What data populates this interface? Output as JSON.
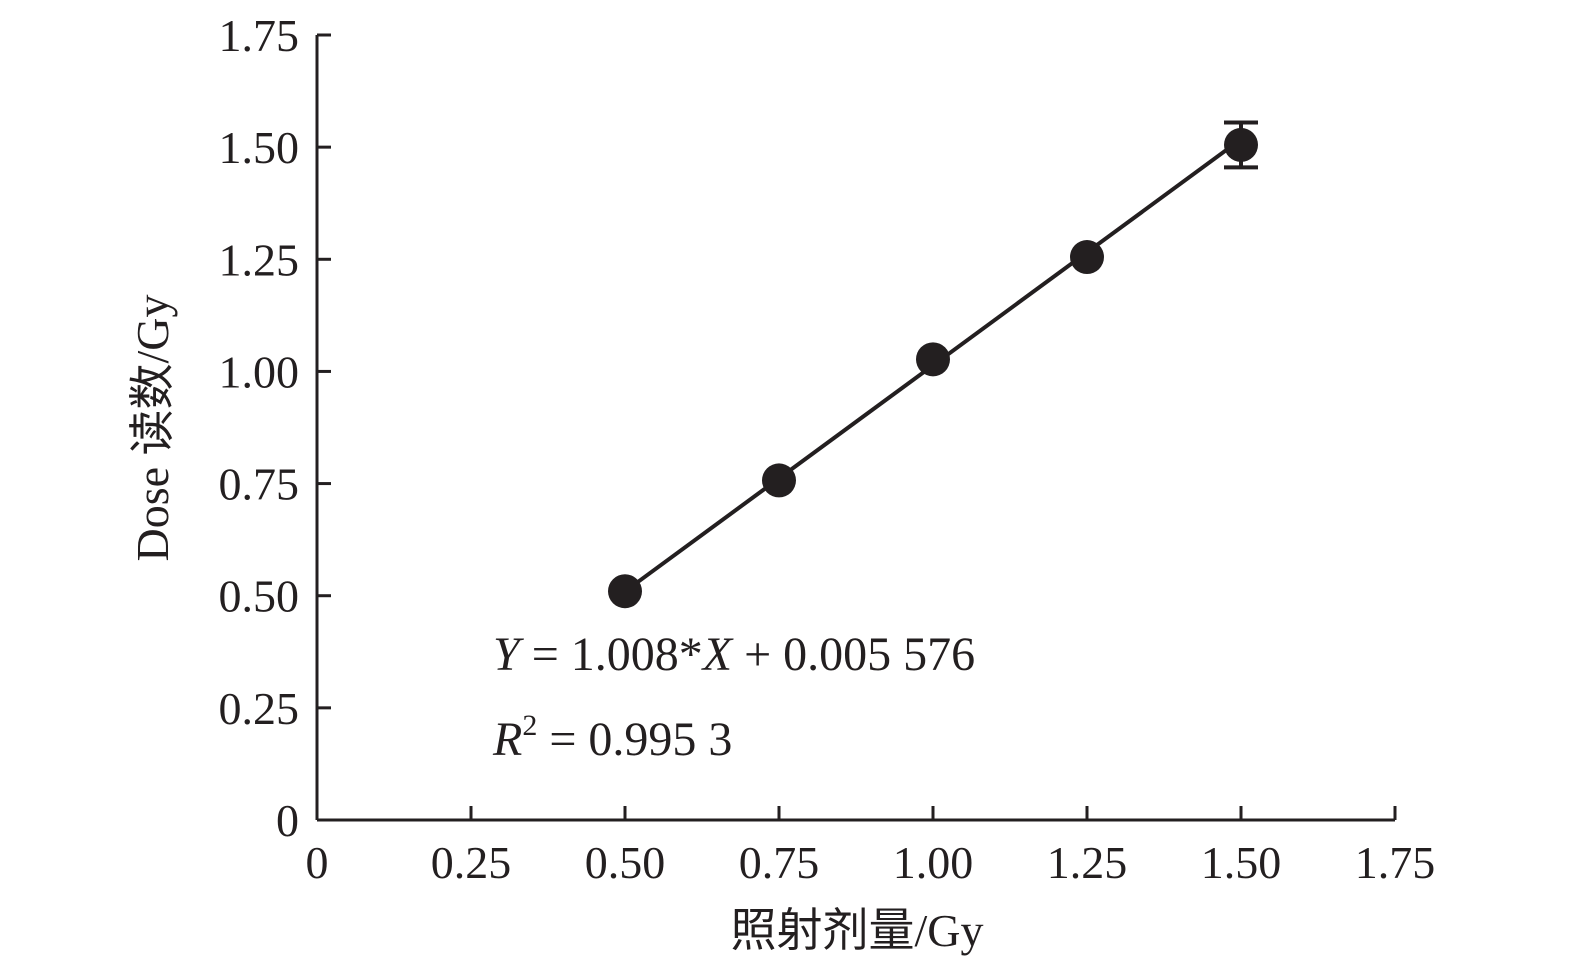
{
  "chart_data": {
    "type": "scatter",
    "xlabel": "照射剂量/Gy",
    "ylabel": "Dose 读数/Gy",
    "xlim": [
      0,
      1.75
    ],
    "ylim": [
      0,
      1.75
    ],
    "xticks": [
      0,
      0.25,
      0.5,
      0.75,
      1.0,
      1.25,
      1.5,
      1.75
    ],
    "yticks": [
      0,
      0.25,
      0.5,
      0.75,
      1.0,
      1.25,
      1.5,
      1.75
    ],
    "xtick_labels": [
      "0",
      "0.25",
      "0.50",
      "0.75",
      "1.00",
      "1.25",
      "1.50",
      "1.75"
    ],
    "ytick_labels": [
      "0",
      "0.25",
      "0.50",
      "0.75",
      "1.00",
      "1.25",
      "1.50",
      "1.75"
    ],
    "points": [
      {
        "x": 0.5,
        "y": 0.51,
        "err": 0
      },
      {
        "x": 0.75,
        "y": 0.757,
        "err": 0
      },
      {
        "x": 1.0,
        "y": 1.027,
        "err": 0
      },
      {
        "x": 1.25,
        "y": 1.255,
        "err": 0
      },
      {
        "x": 1.5,
        "y": 1.505,
        "err": 0.05
      }
    ],
    "fit": {
      "slope": 1.008,
      "intercept": 0.005576,
      "x_range": [
        0.5,
        1.5
      ]
    },
    "equation": {
      "y_var": "Y",
      "eq_mid": " = 1.008*",
      "x_var": "X",
      "eq_tail": " + 0.005 576",
      "r_var": "R",
      "r_sup": "2",
      "r_tail": " = 0.995 3"
    },
    "colors": {
      "ink": "#231f20",
      "background": "#ffffff"
    },
    "grid": false,
    "legend": "none"
  }
}
